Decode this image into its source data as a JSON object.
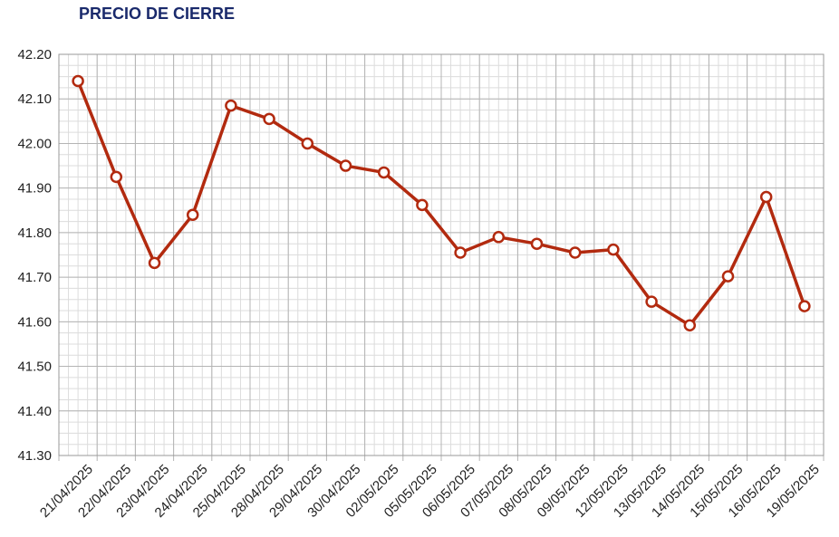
{
  "chart_data": {
    "type": "line",
    "title": "PRECIO DE CIERRE",
    "xlabel": "",
    "ylabel": "",
    "ylim": [
      41.3,
      42.2
    ],
    "y_ticks": [
      "41.30",
      "41.40",
      "41.50",
      "41.60",
      "41.70",
      "41.80",
      "41.90",
      "42.00",
      "42.10",
      "42.20"
    ],
    "categories": [
      "21/04/2025",
      "22/04/2025",
      "23/04/2025",
      "24/04/2025",
      "25/04/2025",
      "28/04/2025",
      "29/04/2025",
      "30/04/2025",
      "02/05/2025",
      "05/05/2025",
      "06/05/2025",
      "07/05/2025",
      "08/05/2025",
      "09/05/2025",
      "12/05/2025",
      "13/05/2025",
      "14/05/2025",
      "15/05/2025",
      "16/05/2025",
      "19/05/2025"
    ],
    "series": [
      {
        "values": [
          42.14,
          41.925,
          41.732,
          41.84,
          42.085,
          42.055,
          42.0,
          41.95,
          41.935,
          41.862,
          41.755,
          41.79,
          41.775,
          41.755,
          41.762,
          41.645,
          41.592,
          41.702,
          41.88,
          41.635
        ]
      }
    ],
    "grid": true,
    "legend": "none",
    "colors": {
      "line": "#b22a0f",
      "grid": "#c8c8c8",
      "axis": "#888888",
      "title": "#1a2a6c"
    }
  }
}
